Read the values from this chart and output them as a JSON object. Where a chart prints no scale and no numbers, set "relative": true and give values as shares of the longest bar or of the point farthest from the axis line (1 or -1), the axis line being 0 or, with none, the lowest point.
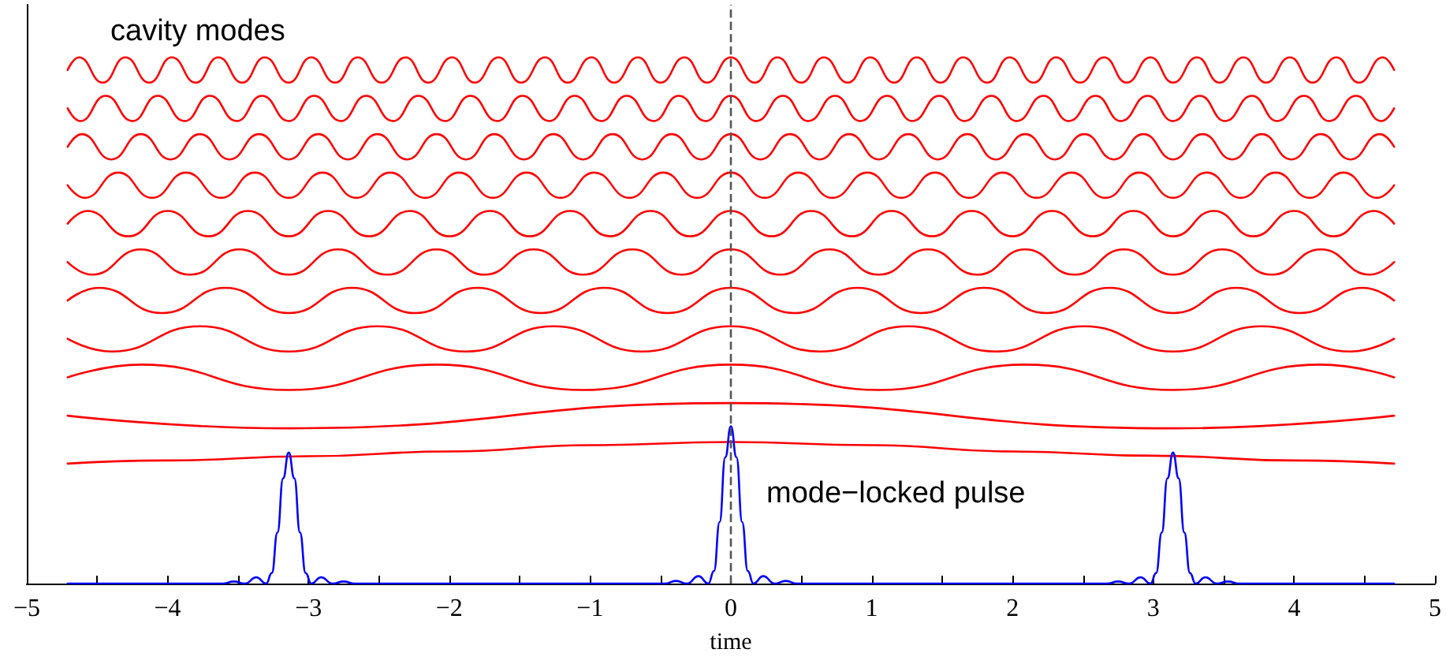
{
  "chart_data": {
    "type": "line",
    "relative": true,
    "xlabel": "time",
    "xlim": [
      -5,
      5
    ],
    "xticks": [
      -5,
      {
        "value": -4.5,
        "label": null
      },
      -4,
      {
        "value": -3.5,
        "label": null
      },
      -3,
      {
        "value": -2.5,
        "label": null
      },
      -2,
      {
        "value": -1.5,
        "label": null
      },
      -1,
      {
        "value": -0.5,
        "label": null
      },
      0,
      {
        "value": 0.5,
        "label": null
      },
      1,
      {
        "value": 1.5,
        "label": null
      },
      2,
      {
        "value": 2.5,
        "label": null
      },
      3,
      {
        "value": 3.5,
        "label": null
      },
      4,
      {
        "value": 4.5,
        "label": null
      },
      5
    ],
    "tick_labels": "x",
    "grid": false,
    "marker": "none",
    "line_style": "solid",
    "series": [
      {
        "color": "#ff0000",
        "x": [
          -4.71,
          -4.63,
          -4.46,
          -4.3,
          -4.13,
          -3.97,
          -3.8,
          -3.64,
          -3.47,
          -3.31,
          -3.14,
          -2.98,
          -2.81,
          -2.65,
          -2.48,
          -2.31,
          -2.15,
          -1.98,
          -1.82,
          -1.65,
          -1.49,
          -1.32,
          -1.16,
          -0.99,
          -0.83,
          -0.66,
          -0.5,
          -0.33,
          -0.17,
          0,
          0.17,
          0.33,
          0.5,
          0.66,
          0.83,
          0.99,
          1.16,
          1.32,
          1.49,
          1.65,
          1.82,
          1.98,
          2.15,
          2.31,
          2.48,
          2.65,
          2.81,
          2.98,
          3.14,
          3.31,
          3.47,
          3.64,
          3.8,
          3.97,
          4.13,
          4.3,
          4.46,
          4.63,
          4.71
        ],
        "values": [
          0.976,
          1,
          0.952,
          1,
          0.952,
          1,
          0.952,
          1,
          0.952,
          1,
          0.952,
          1,
          0.952,
          1,
          0.952,
          1,
          0.952,
          1,
          0.952,
          1,
          0.952,
          1,
          0.952,
          1,
          0.952,
          1,
          0.952,
          1,
          0.952,
          1,
          0.952,
          1,
          0.952,
          1,
          0.952,
          1,
          0.952,
          1,
          0.952,
          1,
          0.952,
          1,
          0.952,
          1,
          0.952,
          1,
          0.952,
          1,
          0.952,
          1,
          0.952,
          1,
          0.952,
          1,
          0.952,
          1,
          0.952,
          1,
          0.976
        ]
      },
      {
        "color": "#ff0000",
        "x": [
          -4.71,
          -4.62,
          -4.44,
          -4.25,
          -4.07,
          -3.88,
          -3.7,
          -3.51,
          -3.33,
          -3.14,
          -2.96,
          -2.77,
          -2.59,
          -2.4,
          -2.22,
          -2.03,
          -1.85,
          -1.66,
          -1.48,
          -1.29,
          -1.11,
          -0.92,
          -0.74,
          -0.55,
          -0.37,
          -0.18,
          0,
          0.18,
          0.37,
          0.55,
          0.74,
          0.92,
          1.11,
          1.29,
          1.48,
          1.66,
          1.85,
          2.03,
          2.22,
          2.4,
          2.59,
          2.77,
          2.96,
          3.14,
          3.33,
          3.51,
          3.7,
          3.88,
          4.07,
          4.25,
          4.44,
          4.62,
          4.71
        ],
        "values": [
          0.903,
          0.879,
          0.927,
          0.879,
          0.927,
          0.879,
          0.927,
          0.879,
          0.927,
          0.879,
          0.927,
          0.879,
          0.927,
          0.879,
          0.927,
          0.879,
          0.927,
          0.879,
          0.927,
          0.879,
          0.927,
          0.879,
          0.927,
          0.879,
          0.927,
          0.879,
          0.927,
          0.879,
          0.927,
          0.879,
          0.927,
          0.879,
          0.927,
          0.879,
          0.927,
          0.879,
          0.927,
          0.879,
          0.927,
          0.879,
          0.927,
          0.879,
          0.927,
          0.879,
          0.927,
          0.879,
          0.927,
          0.879,
          0.927,
          0.879,
          0.927,
          0.879,
          0.903
        ]
      },
      {
        "color": "#ff0000",
        "x": [
          -4.71,
          -4.61,
          -4.4,
          -4.19,
          -3.98,
          -3.77,
          -3.56,
          -3.35,
          -3.14,
          -2.93,
          -2.72,
          -2.51,
          -2.3,
          -2.09,
          -1.88,
          -1.68,
          -1.47,
          -1.26,
          -1.05,
          -0.84,
          -0.63,
          -0.42,
          -0.21,
          0,
          0.21,
          0.42,
          0.63,
          0.84,
          1.05,
          1.26,
          1.47,
          1.68,
          1.88,
          2.09,
          2.3,
          2.51,
          2.72,
          2.93,
          3.14,
          3.35,
          3.56,
          3.77,
          3.98,
          4.19,
          4.4,
          4.61,
          4.71
        ],
        "values": [
          0.83,
          0.854,
          0.806,
          0.854,
          0.806,
          0.854,
          0.806,
          0.854,
          0.806,
          0.854,
          0.806,
          0.854,
          0.806,
          0.854,
          0.806,
          0.854,
          0.806,
          0.854,
          0.806,
          0.854,
          0.806,
          0.854,
          0.806,
          0.854,
          0.806,
          0.854,
          0.806,
          0.854,
          0.806,
          0.854,
          0.806,
          0.854,
          0.806,
          0.854,
          0.806,
          0.854,
          0.806,
          0.854,
          0.806,
          0.854,
          0.806,
          0.854,
          0.806,
          0.854,
          0.806,
          0.854,
          0.83
        ]
      },
      {
        "color": "#ff0000",
        "x": [
          -4.71,
          -4.59,
          -4.35,
          -4.11,
          -3.87,
          -3.62,
          -3.38,
          -3.14,
          -2.9,
          -2.66,
          -2.42,
          -2.17,
          -1.93,
          -1.69,
          -1.45,
          -1.21,
          -0.97,
          -0.72,
          -0.48,
          -0.24,
          0,
          0.24,
          0.48,
          0.72,
          0.97,
          1.21,
          1.45,
          1.69,
          1.93,
          2.17,
          2.42,
          2.66,
          2.9,
          3.14,
          3.38,
          3.62,
          3.87,
          4.11,
          4.35,
          4.59,
          4.71
        ],
        "values": [
          0.757,
          0.733,
          0.781,
          0.733,
          0.781,
          0.733,
          0.781,
          0.733,
          0.781,
          0.733,
          0.781,
          0.733,
          0.781,
          0.733,
          0.781,
          0.733,
          0.781,
          0.733,
          0.781,
          0.733,
          0.781,
          0.733,
          0.781,
          0.733,
          0.781,
          0.733,
          0.781,
          0.733,
          0.781,
          0.733,
          0.781,
          0.733,
          0.781,
          0.733,
          0.781,
          0.733,
          0.781,
          0.733,
          0.781,
          0.733,
          0.757
        ]
      },
      {
        "color": "#ff0000",
        "x": [
          -4.71,
          -4.57,
          -4.28,
          -4.0,
          -3.71,
          -3.43,
          -3.14,
          -2.86,
          -2.57,
          -2.28,
          -2.0,
          -1.71,
          -1.43,
          -1.14,
          -0.86,
          -0.57,
          -0.29,
          0,
          0.29,
          0.57,
          0.86,
          1.14,
          1.43,
          1.71,
          2.0,
          2.28,
          2.57,
          2.86,
          3.14,
          3.43,
          3.71,
          4.0,
          4.28,
          4.57,
          4.71
        ],
        "values": [
          0.684,
          0.708,
          0.66,
          0.708,
          0.66,
          0.708,
          0.66,
          0.708,
          0.66,
          0.708,
          0.66,
          0.708,
          0.66,
          0.708,
          0.66,
          0.708,
          0.66,
          0.708,
          0.66,
          0.708,
          0.66,
          0.708,
          0.66,
          0.708,
          0.66,
          0.708,
          0.66,
          0.708,
          0.66,
          0.708,
          0.66,
          0.708,
          0.66,
          0.708,
          0.684
        ]
      },
      {
        "color": "#ff0000",
        "x": [
          -4.71,
          -4.54,
          -4.19,
          -3.84,
          -3.49,
          -3.14,
          -2.79,
          -2.44,
          -2.09,
          -1.75,
          -1.4,
          -1.05,
          -0.7,
          -0.35,
          0,
          0.35,
          0.7,
          1.05,
          1.4,
          1.75,
          2.09,
          2.44,
          2.79,
          3.14,
          3.49,
          3.84,
          4.19,
          4.54,
          4.71
        ],
        "values": [
          0.611,
          0.587,
          0.635,
          0.587,
          0.635,
          0.587,
          0.635,
          0.587,
          0.635,
          0.587,
          0.635,
          0.587,
          0.635,
          0.587,
          0.635,
          0.587,
          0.635,
          0.587,
          0.635,
          0.587,
          0.635,
          0.587,
          0.635,
          0.587,
          0.635,
          0.587,
          0.635,
          0.587,
          0.611
        ]
      },
      {
        "color": "#ff0000",
        "x": [
          -4.71,
          -4.49,
          -4.04,
          -3.59,
          -3.14,
          -2.69,
          -2.24,
          -1.8,
          -1.35,
          -0.9,
          -0.45,
          0,
          0.45,
          0.9,
          1.35,
          1.8,
          2.24,
          2.69,
          3.14,
          3.59,
          4.04,
          4.49,
          4.71
        ],
        "values": [
          0.538,
          0.562,
          0.514,
          0.562,
          0.514,
          0.562,
          0.514,
          0.562,
          0.514,
          0.562,
          0.514,
          0.562,
          0.514,
          0.562,
          0.514,
          0.562,
          0.514,
          0.562,
          0.514,
          0.562,
          0.514,
          0.562,
          0.538
        ]
      },
      {
        "color": "#ff0000",
        "x": [
          -4.71,
          -4.4,
          -3.77,
          -3.14,
          -2.51,
          -1.88,
          -1.26,
          -0.63,
          0,
          0.63,
          1.26,
          1.88,
          2.51,
          3.14,
          3.77,
          4.4,
          4.71
        ],
        "values": [
          0.465,
          0.441,
          0.489,
          0.441,
          0.489,
          0.441,
          0.489,
          0.441,
          0.489,
          0.441,
          0.489,
          0.441,
          0.489,
          0.441,
          0.489,
          0.441,
          0.465
        ]
      },
      {
        "color": "#ff0000",
        "x": [
          -4.71,
          -4.19,
          -3.14,
          -2.09,
          -1.05,
          0,
          1.05,
          2.09,
          3.14,
          4.19,
          4.71
        ],
        "values": [
          0.392,
          0.416,
          0.368,
          0.416,
          0.368,
          0.416,
          0.368,
          0.416,
          0.368,
          0.416,
          0.392
        ]
      },
      {
        "color": "#ff0000",
        "x": [
          -4.71,
          -3.14,
          0,
          3.14,
          4.71
        ],
        "values": [
          0.319,
          0.295,
          0.343,
          0.295,
          0.319
        ]
      },
      {
        "color": "#ff0000",
        "x": [
          -4.71,
          -4,
          -3,
          -2,
          -1,
          0,
          1,
          2,
          3,
          4,
          4.71
        ],
        "values": [
          0.228,
          0.234,
          0.242,
          0.251,
          0.263,
          0.269,
          0.263,
          0.251,
          0.243,
          0.234,
          0.228
        ]
      },
      {
        "color": "#0000ff",
        "x": [
          -4.71,
          -3.61,
          -3.53,
          -3.45,
          -3.37,
          -3.3,
          -3.26,
          -3.22,
          -3.18,
          -3.14,
          -3.1,
          -3.06,
          -3.02,
          -2.98,
          -2.91,
          -2.83,
          -2.75,
          -2.67,
          -0.47,
          -0.39,
          -0.31,
          -0.23,
          -0.16,
          -0.12,
          -0.08,
          -0.04,
          0,
          0.04,
          0.08,
          0.12,
          0.16,
          0.23,
          0.31,
          0.39,
          0.47,
          2.67,
          2.75,
          2.83,
          2.91,
          2.98,
          3.02,
          3.06,
          3.1,
          3.14,
          3.18,
          3.22,
          3.26,
          3.3,
          3.37,
          3.45,
          3.53,
          3.61,
          4.71
        ],
        "values": [
          0,
          0,
          0.004,
          0,
          0.012,
          0,
          0.02,
          0.097,
          0.2,
          0.249,
          0.2,
          0.097,
          0.02,
          0,
          0.012,
          0,
          0.004,
          0,
          0,
          0.005,
          0,
          0.014,
          0,
          0.024,
          0.117,
          0.24,
          0.299,
          0.24,
          0.117,
          0.024,
          0,
          0.014,
          0,
          0.005,
          0,
          0,
          0.004,
          0,
          0.012,
          0,
          0.02,
          0.097,
          0.2,
          0.249,
          0.2,
          0.097,
          0.02,
          0,
          0.012,
          0,
          0.004,
          0,
          0
        ]
      }
    ],
    "ref_lines": [
      {
        "axis": "x",
        "value": 0,
        "color": "#555555",
        "line_style": "dashed"
      }
    ],
    "annotations": [
      "cavity modes",
      "mode−locked pulse"
    ]
  }
}
